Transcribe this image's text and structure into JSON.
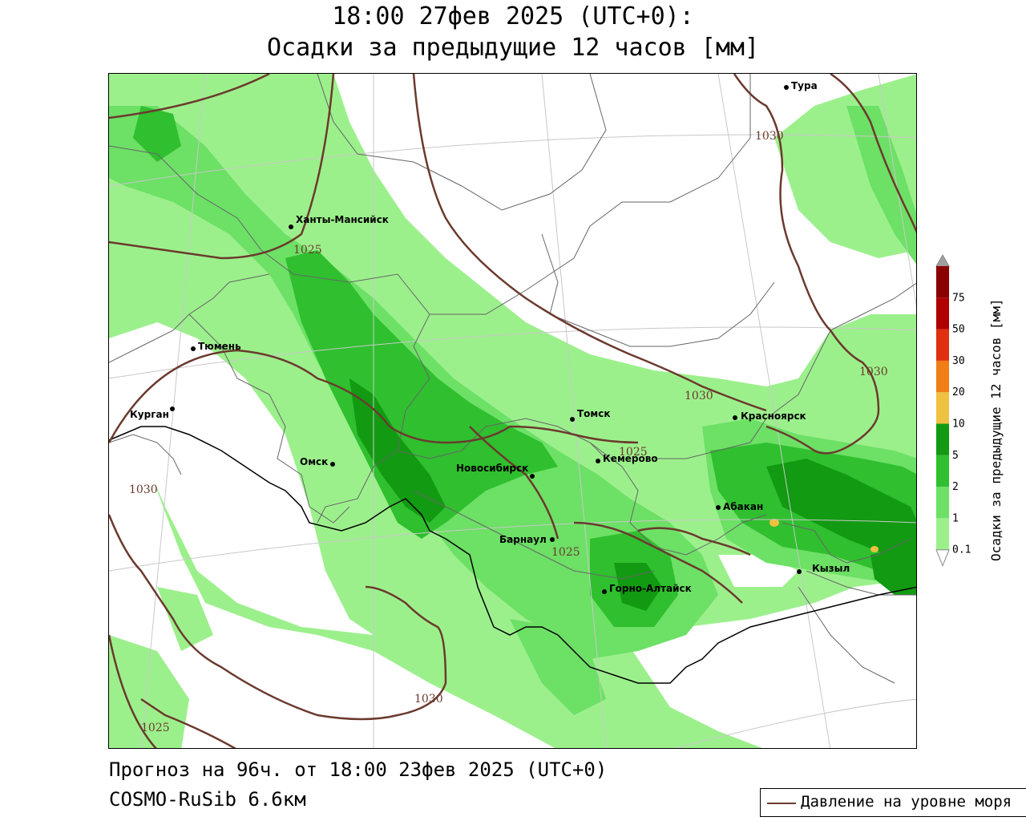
{
  "title": {
    "line1": "18:00 27фев 2025 (UTC+0):",
    "line2": "Осадки за предыдущие 12 часов [мм]"
  },
  "footer": {
    "forecast": "Прогноз на 96ч. от 18:00 23фев 2025 (UTC+0)",
    "model": "COSMO-RuSib 6.6км"
  },
  "legend": {
    "isobar_label": "Давление на уровне моря",
    "isobar_color": "#6b3a2e"
  },
  "colorbar": {
    "title": "Осадки за предыдущие 12 часов [мм]",
    "levels": [
      "0.1",
      "1",
      "2",
      "5",
      "10",
      "20",
      "30",
      "50",
      "75"
    ],
    "colors": [
      "#9cf08c",
      "#6de066",
      "#2fbf2f",
      "#129a12",
      "#f0c040",
      "#f07d16",
      "#e03010",
      "#b00000",
      "#8b0000"
    ],
    "over_color": "#a0a0a0",
    "under_color": "#ffffff"
  },
  "cities": [
    {
      "name": "Тура"
    },
    {
      "name": "Ханты-Мансийск"
    },
    {
      "name": "Тюмень"
    },
    {
      "name": "Курган"
    },
    {
      "name": "Омск"
    },
    {
      "name": "Томск"
    },
    {
      "name": "Красноярск"
    },
    {
      "name": "Кемерово"
    },
    {
      "name": "Новосибирск"
    },
    {
      "name": "Абакан"
    },
    {
      "name": "Барнаул"
    },
    {
      "name": "Кызыл"
    },
    {
      "name": "Горно-Алтайск"
    }
  ],
  "isobars": [
    {
      "value": "1030"
    },
    {
      "value": "1025"
    },
    {
      "value": "1030"
    },
    {
      "value": "1030"
    },
    {
      "value": "1025"
    },
    {
      "value": "1030"
    },
    {
      "value": "1025"
    },
    {
      "value": "1030"
    },
    {
      "value": "1025"
    }
  ]
}
